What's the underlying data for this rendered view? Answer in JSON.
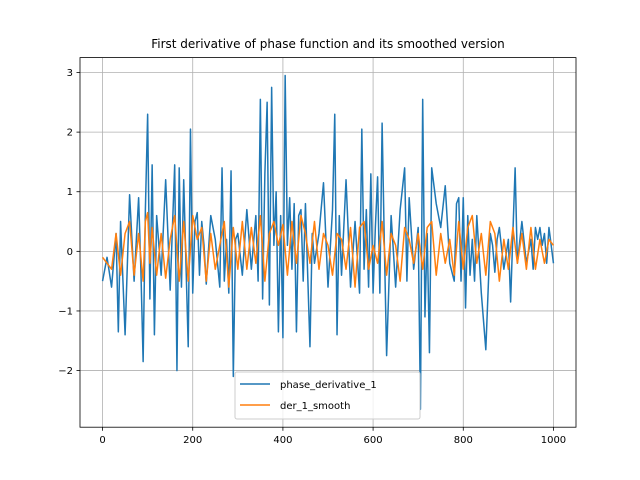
{
  "chart_data": {
    "type": "line",
    "title": "First derivative of phase function and its smoothed version",
    "xlabel": "",
    "ylabel": "",
    "xlim": [
      -50,
      1050
    ],
    "ylim": [
      -2.95,
      3.25
    ],
    "grid": true,
    "legend_position": "lower-center",
    "x_ticks": [
      0,
      200,
      400,
      600,
      800,
      1000
    ],
    "x_tick_labels": [
      "0",
      "200",
      "400",
      "600",
      "800",
      "1000"
    ],
    "y_ticks": [
      -2,
      -1,
      0,
      1,
      2,
      3
    ],
    "y_tick_labels": [
      "−2",
      "−1",
      "0",
      "1",
      "2",
      "3"
    ],
    "series": [
      {
        "name": "phase_derivative_1",
        "color": "#1f77b4",
        "x": [
          0,
          10,
          20,
          30,
          35,
          40,
          50,
          60,
          70,
          80,
          85,
          90,
          95,
          100,
          105,
          110,
          115,
          120,
          130,
          140,
          150,
          155,
          160,
          165,
          170,
          175,
          180,
          185,
          190,
          195,
          200,
          205,
          210,
          215,
          220,
          225,
          230,
          240,
          250,
          260,
          265,
          270,
          275,
          280,
          285,
          290,
          295,
          300,
          310,
          320,
          330,
          340,
          345,
          350,
          355,
          360,
          365,
          370,
          375,
          380,
          385,
          390,
          395,
          400,
          405,
          410,
          415,
          420,
          425,
          430,
          435,
          440,
          445,
          450,
          460,
          465,
          470,
          480,
          490,
          500,
          510,
          515,
          520,
          525,
          530,
          540,
          550,
          560,
          570,
          575,
          580,
          585,
          590,
          595,
          600,
          605,
          610,
          615,
          620,
          625,
          630,
          640,
          650,
          660,
          670,
          675,
          680,
          690,
          700,
          705,
          710,
          715,
          720,
          725,
          730,
          740,
          750,
          760,
          770,
          780,
          785,
          790,
          795,
          800,
          805,
          810,
          815,
          820,
          825,
          830,
          840,
          850,
          860,
          865,
          870,
          875,
          880,
          890,
          900,
          905,
          910,
          915,
          920,
          930,
          940,
          950,
          955,
          960,
          965,
          970,
          975,
          980,
          985,
          990,
          1000
        ],
        "y": [
          -0.5,
          -0.1,
          -0.6,
          0.3,
          -1.35,
          0.5,
          -1.4,
          0.95,
          -0.5,
          0.9,
          -0.3,
          -1.85,
          0.7,
          2.3,
          -0.8,
          1.45,
          -1.4,
          0.6,
          -0.4,
          1.2,
          -0.65,
          0.4,
          1.45,
          -2.0,
          1.4,
          -0.6,
          1.2,
          -0.2,
          -1.6,
          2.05,
          -0.7,
          0.5,
          0.65,
          -0.4,
          0.5,
          0.1,
          -0.55,
          0.6,
          0.2,
          -0.6,
          1.4,
          -0.5,
          0.2,
          -0.7,
          1.35,
          -2.1,
          0.2,
          0.3,
          -0.4,
          0.7,
          -0.3,
          0.6,
          -0.5,
          2.55,
          -0.8,
          1.3,
          2.5,
          -0.9,
          2.75,
          0.1,
          1.0,
          -1.35,
          0.6,
          -1.45,
          2.95,
          0.1,
          0.9,
          -0.3,
          0.8,
          -1.35,
          0.6,
          0.7,
          -0.5,
          0.8,
          -1.6,
          0.3,
          -0.2,
          0.3,
          1.15,
          -0.6,
          0.7,
          2.3,
          -1.4,
          0.6,
          -0.4,
          1.2,
          -0.6,
          0.5,
          -0.7,
          2.05,
          -0.3,
          0.7,
          -0.6,
          1.3,
          -0.7,
          0.4,
          1.25,
          -0.7,
          2.15,
          0.1,
          -1.75,
          0.6,
          -0.6,
          0.7,
          1.4,
          -0.5,
          0.9,
          -0.3,
          0.4,
          -2.65,
          2.55,
          -1.1,
          0.3,
          -1.7,
          1.4,
          0.8,
          0.4,
          1.1,
          -0.2,
          -0.5,
          0.8,
          0.9,
          -0.5,
          0.9,
          -0.95,
          0.6,
          -0.4,
          0.2,
          -0.5,
          0.6,
          -0.7,
          -1.65,
          0.3,
          0.1,
          -0.35,
          0.2,
          0.4,
          -0.3,
          0.2,
          -0.85,
          0.3,
          1.4,
          -0.2,
          0.5,
          -0.2,
          0.2,
          -0.3,
          0.4,
          0.2,
          0.4,
          0.1,
          0.3,
          -0.2,
          0.4,
          -0.2
        ]
      },
      {
        "name": "der_1_smooth",
        "color": "#ff7f0e",
        "x": [
          0,
          10,
          20,
          30,
          40,
          50,
          60,
          70,
          80,
          90,
          95,
          100,
          105,
          110,
          120,
          130,
          140,
          150,
          160,
          170,
          180,
          190,
          200,
          210,
          220,
          230,
          240,
          250,
          260,
          270,
          280,
          290,
          300,
          310,
          320,
          330,
          340,
          350,
          360,
          370,
          380,
          390,
          400,
          410,
          420,
          430,
          440,
          450,
          460,
          470,
          480,
          490,
          500,
          510,
          520,
          530,
          540,
          550,
          560,
          570,
          580,
          590,
          600,
          610,
          620,
          630,
          640,
          650,
          660,
          670,
          680,
          690,
          700,
          710,
          720,
          730,
          740,
          750,
          760,
          770,
          780,
          790,
          800,
          810,
          820,
          830,
          840,
          850,
          860,
          870,
          880,
          890,
          900,
          910,
          920,
          930,
          940,
          950,
          960,
          970,
          980,
          990,
          1000
        ],
        "y": [
          -0.1,
          -0.2,
          -0.3,
          0.3,
          -0.4,
          0.3,
          0.5,
          -0.4,
          0.3,
          -0.5,
          0.5,
          0.65,
          -0.2,
          0.4,
          -0.4,
          0.3,
          -0.45,
          0.2,
          0.6,
          -0.5,
          0.5,
          -0.5,
          0.6,
          0.2,
          0.4,
          -0.5,
          0.3,
          -0.3,
          0.1,
          0.5,
          -0.6,
          0.4,
          -0.3,
          0.5,
          -0.3,
          0.4,
          -0.2,
          0.6,
          -0.5,
          0.3,
          0.5,
          0.1,
          0.45,
          -0.4,
          0.5,
          -0.2,
          0.6,
          0.3,
          -0.2,
          0.5,
          -0.3,
          0.3,
          0.1,
          -0.4,
          0.3,
          0.2,
          -0.3,
          0.4,
          -0.6,
          0.4,
          0.5,
          -0.3,
          0.1,
          -0.2,
          0.5,
          -0.4,
          0.3,
          0.1,
          -0.5,
          0.4,
          0.2,
          -0.2,
          0.3,
          -0.3,
          0.4,
          0.5,
          -0.4,
          0.3,
          -0.2,
          0.2,
          -0.4,
          0.5,
          -0.3,
          0.4,
          0.6,
          -0.2,
          0.3,
          -0.4,
          0.5,
          0.3,
          -0.5,
          0.2,
          -0.3,
          0.4,
          -0.2,
          0.3,
          -0.3,
          0.4,
          -0.3,
          0.2,
          -0.2,
          0.2,
          0.1
        ]
      }
    ]
  }
}
